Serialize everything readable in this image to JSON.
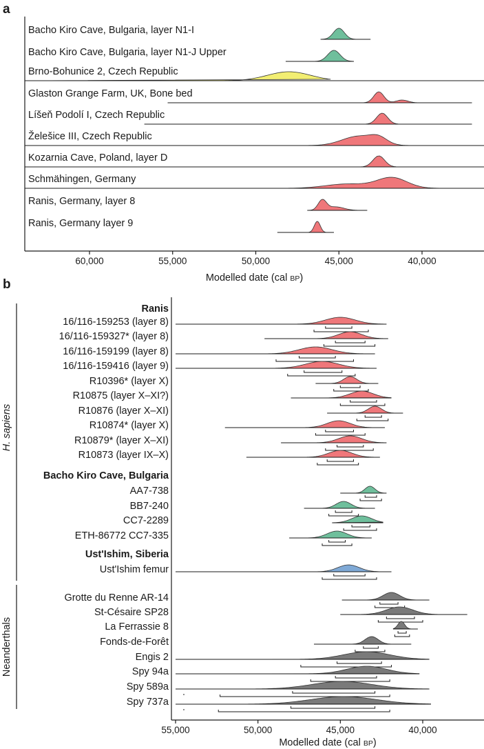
{
  "chart_data": [
    {
      "panel": "a",
      "type": "area",
      "title": "",
      "xlabel": "Modelled date (cal BP)",
      "xlim": [
        63500,
        37000
      ],
      "xticks": [
        "60,000",
        "55,000",
        "50,000",
        "45,000",
        "40,000"
      ],
      "xtick_values": [
        60000,
        55000,
        50000,
        45000,
        40000
      ],
      "colors": {
        "green": "#6fbf9c",
        "yellow": "#f2ee72",
        "red": "#ef777a",
        "grey": "#7a7a7a",
        "blue": "#7fa9d6"
      },
      "rows": [
        {
          "label": "Bacho Kiro Cave, Bulgaria, layer N1-I",
          "color": "green",
          "range": [
            46100,
            43100
          ],
          "peaks": [
            [
              45000,
              330,
              1.0
            ]
          ]
        },
        {
          "label": "Bacho Kiro Cave, Bulgaria, layer N1-J Upper",
          "color": "green",
          "range": [
            48200,
            44100
          ],
          "peaks": [
            [
              45300,
              370,
              1.0
            ]
          ]
        },
        {
          "label": "Brno-Bohunice 2, Czech Republic",
          "color": "yellow",
          "range": [
            63500,
            45500
          ],
          "peaks": [
            [
              48000,
              1300,
              1.0
            ]
          ]
        },
        {
          "label": "Glaston Grange Farm, UK, Bone bed",
          "color": "red",
          "range": [
            55300,
            37000
          ],
          "peaks": [
            [
              42600,
              300,
              1.0
            ],
            [
              41200,
              350,
              0.25
            ]
          ]
        },
        {
          "label": "Líšeň Podolí I, Czech Republic",
          "color": "red",
          "range": [
            56700,
            37000
          ],
          "peaks": [
            [
              42400,
              330,
              1.0
            ]
          ]
        },
        {
          "label": "Želešice III, Czech Republic",
          "color": "red",
          "range": [
            56500,
            37000
          ],
          "peaks": [
            [
              43800,
              1000,
              0.9
            ],
            [
              42600,
              500,
              0.55
            ]
          ]
        },
        {
          "label": "Kozarnia Cave, Poland, layer D",
          "color": "red",
          "range": [
            59800,
            37000
          ],
          "peaks": [
            [
              42600,
              350,
              1.0
            ]
          ]
        },
        {
          "label": "Schmähingen, Germany",
          "color": "red",
          "range": [
            63500,
            37000
          ],
          "peaks": [
            [
              41800,
              900,
              0.85
            ],
            [
              44500,
              1300,
              0.35
            ]
          ]
        },
        {
          "label": "Ranis, Germany, layer 8",
          "color": "red",
          "range": [
            46900,
            43300
          ],
          "peaks": [
            [
              46000,
              250,
              1.0
            ],
            [
              45200,
              500,
              0.35
            ]
          ]
        },
        {
          "label": "Ranis, Germany layer 9",
          "color": "red",
          "range": [
            48700,
            45300
          ],
          "peaks": [
            [
              46300,
              180,
              1.0
            ]
          ]
        }
      ]
    },
    {
      "panel": "b",
      "type": "area",
      "title": "",
      "xlabel": "Modelled date (cal BP)",
      "xlim": [
        55000,
        36200
      ],
      "xticks": [
        "55,000",
        "50,000",
        "45,000",
        "40,000"
      ],
      "xtick_values": [
        55000,
        50000,
        45000,
        40000
      ],
      "groups": [
        {
          "name": "Ranis",
          "rows": [
            {
              "label": "16/116-159253 (layer 8)",
              "color": "red",
              "range": [
                55000,
                42200
              ],
              "peaks": [
                [
                  45000,
                  900,
                  1.0
                ]
              ],
              "bars": [
                [
                  45900,
                  44300
                ],
                [
                  46600,
                  43300
                ]
              ]
            },
            {
              "label": "16/116-159327* (layer 8)",
              "color": "red",
              "range": [
                49600,
                42100
              ],
              "peaks": [
                [
                  44400,
                  700,
                  1.0
                ]
              ],
              "bars": [
                [
                  45300,
                  43500
                ],
                [
                  46000,
                  42900
                ]
              ]
            },
            {
              "label": "16/116-159199 (layer 8)",
              "color": "red",
              "range": [
                55000,
                42900
              ],
              "peaks": [
                [
                  46500,
                  1000,
                  1.0
                ]
              ],
              "bars": [
                [
                  47500,
                  45300
                ],
                [
                  48900,
                  44200
                ]
              ]
            },
            {
              "label": "16/116-159416 (layer 9)",
              "color": "red",
              "range": [
                55000,
                42800
              ],
              "peaks": [
                [
                  46100,
                  1000,
                  1.0
                ]
              ],
              "bars": [
                [
                  47200,
                  44900
                ],
                [
                  48200,
                  44100
                ]
              ]
            },
            {
              "label": "R10396* (layer X)",
              "color": "red",
              "range": [
                46500,
                42700
              ],
              "peaks": [
                [
                  44400,
                  400,
                  1.0
                ]
              ],
              "bars": [
                [
                  45000,
                  43800
                ],
                [
                  45400,
                  43300
                ]
              ]
            },
            {
              "label": "R10875 (layer X–XI?)",
              "color": "red",
              "range": [
                48000,
                41900
              ],
              "peaks": [
                [
                  43700,
                  700,
                  1.0
                ]
              ],
              "bars": [
                [
                  44400,
                  42800
                ],
                [
                  45000,
                  42300
                ]
              ]
            },
            {
              "label": "R10876 (layer X–XI)",
              "color": "red",
              "range": [
                45800,
                41200
              ],
              "peaks": [
                [
                  42900,
                  400,
                  1.0
                ]
              ],
              "bars": [
                [
                  43500,
                  42500
                ],
                [
                  44000,
                  42100
                ]
              ]
            },
            {
              "label": "R10874* (layer X)",
              "color": "red",
              "range": [
                52000,
                42300
              ],
              "peaks": [
                [
                  45100,
                  700,
                  1.0
                ]
              ],
              "bars": [
                [
                  45900,
                  44200
                ],
                [
                  46500,
                  43500
                ]
              ]
            },
            {
              "label": "R10879* (layer X–XI)",
              "color": "red",
              "range": [
                48600,
                42200
              ],
              "peaks": [
                [
                  44400,
                  700,
                  1.0
                ]
              ],
              "bars": [
                [
                  45200,
                  43600
                ],
                [
                  45900,
                  43000
                ]
              ]
            },
            {
              "label": "R10873 (layer IX–X)",
              "color": "red",
              "range": [
                50700,
                42600
              ],
              "peaks": [
                [
                  45000,
                  700,
                  1.0
                ]
              ],
              "bars": [
                [
                  45800,
                  44200
                ],
                [
                  46400,
                  43900
                ]
              ]
            }
          ]
        },
        {
          "name": "Bacho Kiro Cave, Bulgaria",
          "rows": [
            {
              "label": "AA7-738",
              "color": "green",
              "range": [
                45000,
                42200
              ],
              "peaks": [
                [
                  43200,
                  300,
                  1.0
                ]
              ],
              "bars": [
                [
                  43500,
                  42800
                ],
                [
                  43800,
                  42500
                ]
              ]
            },
            {
              "label": "BB7-240",
              "color": "green",
              "range": [
                47200,
                42900
              ],
              "peaks": [
                [
                  44800,
                  450,
                  1.0
                ]
              ],
              "bars": [
                [
                  45300,
                  44300
                ],
                [
                  45700,
                  43900
                ]
              ]
            },
            {
              "label": "CC7-2289",
              "color": "green",
              "range": [
                45500,
                42400
              ],
              "peaks": [
                [
                  43700,
                  600,
                  1.0
                ]
              ],
              "bars": [
                [
                  44300,
                  43200
                ],
                [
                  44800,
                  42800
                ]
              ]
            },
            {
              "label": "ETH-86772 CC7-335",
              "color": "green",
              "range": [
                48100,
                43100
              ],
              "peaks": [
                [
                  45200,
                  600,
                  1.0
                ]
              ],
              "bars": [
                [
                  45700,
                  44700
                ],
                [
                  46100,
                  44300
                ]
              ]
            }
          ]
        },
        {
          "name": "Ust'Ishim, Siberia",
          "rows": [
            {
              "label": "Ust'Ishim femur",
              "color": "blue",
              "range": [
                55000,
                41900
              ],
              "peaks": [
                [
                  44500,
                  650,
                  1.0
                ]
              ],
              "bars": [
                [
                  45400,
                  43500
                ],
                [
                  46100,
                  42800
                ]
              ]
            }
          ]
        }
      ],
      "neanderthals": [
        {
          "label": "Grotte du Renne AR-14",
          "color": "grey",
          "range": [
            44900,
            39600
          ],
          "peaks": [
            [
              41900,
              500,
              1.0
            ]
          ],
          "bars": [
            [
              42600,
              41500
            ],
            [
              42900,
              41100
            ]
          ]
        },
        {
          "label": "St-Césaire SP28",
          "color": "grey",
          "range": [
            45000,
            37300
          ],
          "peaks": [
            [
              41400,
              800,
              1.0
            ]
          ],
          "bars": [
            [
              42200,
              40500
            ],
            [
              42700,
              40000
            ]
          ]
        },
        {
          "label": "La Ferrassie 8",
          "color": "grey",
          "range": [
            41800,
            40300
          ],
          "peaks": [
            [
              41300,
              200,
              1.0
            ]
          ],
          "bars": [
            [
              41500,
              41000
            ],
            [
              41700,
              40800
            ]
          ]
        },
        {
          "label": "Fonds-de-Forêt",
          "color": "grey",
          "range": [
            46600,
            40700
          ],
          "peaks": [
            [
              43100,
              400,
              1.0
            ]
          ],
          "bars": [
            [
              43600,
              42700
            ],
            [
              44100,
              42300
            ]
          ]
        },
        {
          "label": "Engis 2",
          "color": "grey",
          "range": [
            55000,
            39600
          ],
          "peaks": [
            [
              43400,
              1400,
              1.0
            ]
          ],
          "bars": [
            [
              45200,
              42500
            ],
            [
              47400,
              41900
            ]
          ]
        },
        {
          "label": "Spy 94a",
          "color": "grey",
          "range": [
            55000,
            40200
          ],
          "peaks": [
            [
              43400,
              1200,
              1.0
            ]
          ],
          "bars": [
            [
              45300,
              42800
            ],
            [
              46800,
              42000
            ]
          ]
        },
        {
          "label": "Spy 589a",
          "color": "grey",
          "range": [
            55000,
            39600
          ],
          "peaks": [
            [
              44900,
              1800,
              1.0
            ]
          ],
          "bars": [
            [
              47900,
              42900
            ],
            [
              52300,
              42000
            ]
          ],
          "outliers": [
            54500
          ]
        },
        {
          "label": "Spy 737a",
          "color": "grey",
          "range": [
            55000,
            39500
          ],
          "peaks": [
            [
              44800,
              2000,
              1.0
            ]
          ],
          "bars": [
            [
              48000,
              42900
            ],
            [
              52400,
              42000
            ]
          ],
          "outliers": [
            54500
          ]
        }
      ],
      "side_labels": {
        "sapiens": "H. sapiens",
        "neanderthals": "Neanderthals"
      }
    }
  ],
  "panel_labels": {
    "a": "a",
    "b": "b"
  },
  "axis_unit_main": "Modelled date (cal ",
  "axis_unit_bp": "BP",
  "axis_unit_close": ")"
}
